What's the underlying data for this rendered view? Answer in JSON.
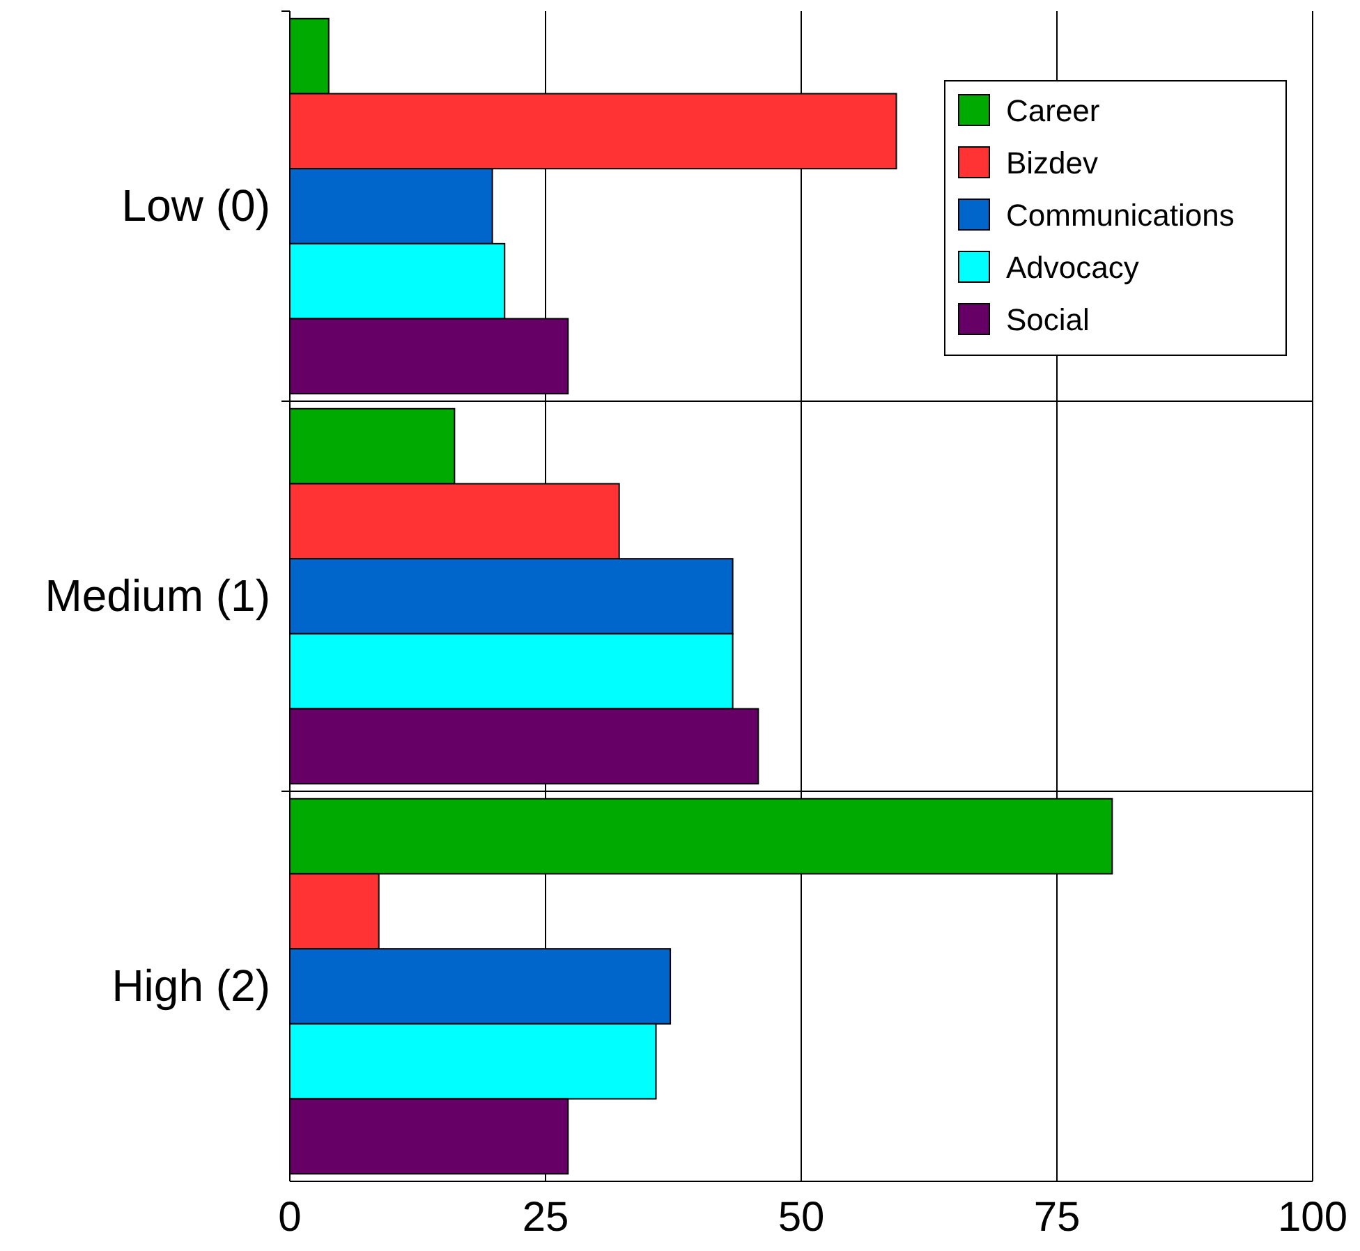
{
  "chart_data": {
    "type": "bar",
    "orientation": "horizontal",
    "categories": [
      "Low (0)",
      "Medium (1)",
      "High (2)"
    ],
    "series": [
      {
        "name": "Career",
        "color": "#00aa00",
        "values": [
          3.8,
          16.1,
          80.4
        ]
      },
      {
        "name": "Bizdev",
        "color": "#ff3333",
        "values": [
          59.3,
          32.2,
          8.7
        ]
      },
      {
        "name": "Communications",
        "color": "#0066cc",
        "values": [
          19.8,
          43.3,
          37.2
        ]
      },
      {
        "name": "Advocacy",
        "color": "#00ffff",
        "values": [
          21,
          43.3,
          35.8
        ]
      },
      {
        "name": "Social",
        "color": "#660066",
        "values": [
          27.2,
          45.8,
          27.2
        ]
      }
    ],
    "xlim": [
      0,
      100
    ],
    "xticks": [
      0,
      25,
      50,
      75,
      100
    ],
    "grid": true,
    "legend": "top right"
  }
}
